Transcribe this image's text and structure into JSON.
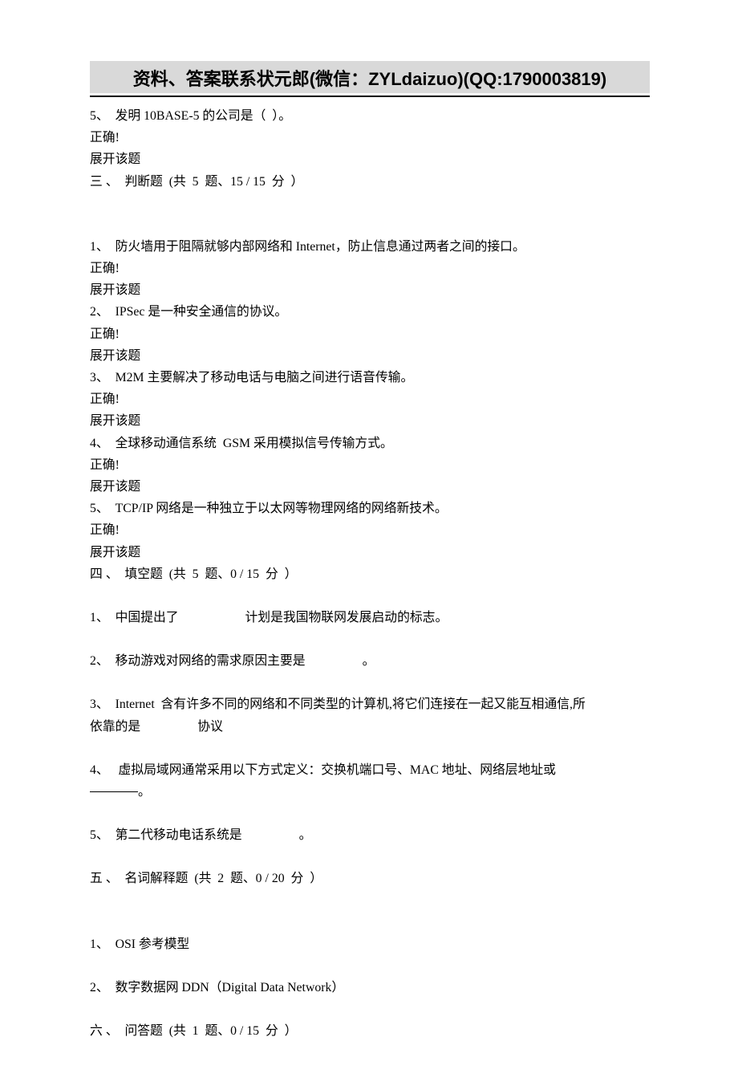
{
  "header": {
    "bannerText": "资料、答案联系状元郎(微信：ZYLdaizuo)(QQ:1790003819)",
    "bannerBg": "#d9d9d9",
    "bannerColor": "#000000"
  },
  "intro": {
    "q5": "5、  发明 10BASE-5 的公司是（  ）。",
    "correct": "正确!",
    "expand": "展开该题"
  },
  "section3": {
    "title": "三 、  判断题  (共  5  题、15 / 15  分  ）",
    "items": [
      {
        "q": "1、  防火墙用于阻隔就够内部网络和 Internet，防止信息通过两者之间的接口。",
        "correct": "正确!",
        "expand": "展开该题"
      },
      {
        "q": "2、  IPSec 是一种安全通信的协议。",
        "correct": "正确!",
        "expand": "展开该题"
      },
      {
        "q": "3、  M2M 主要解决了移动电话与电脑之间进行语音传输。",
        "correct": "正确!",
        "expand": "展开该题"
      },
      {
        "q": "4、  全球移动通信系统  GSM 采用模拟信号传输方式。",
        "correct": "正确!",
        "expand": "展开该题"
      },
      {
        "q": "5、  TCP/IP 网络是一种独立于以太网等物理网络的网络新技术。",
        "correct": "正确!",
        "expand": "展开该题"
      }
    ]
  },
  "section4": {
    "title": "四 、  填空题  (共  5  题、0 / 15  分  ）",
    "q1": "1、  中国提出了                     计划是我国物联网发展启动的标志。",
    "q2": "2、  移动游戏对网络的需求原因主要是                  。",
    "q3a": "3、  Internet  含有许多不同的网络和不同类型的计算机,将它们连接在一起又能互相通信,所",
    "q3b": "依靠的是                  协议",
    "q4a": "4、   虚拟局域网通常采用以下方式定义：交换机端口号、MAC 地址、网络层地址或",
    "q4b_suffix": "。",
    "q5": "5、  第二代移动电话系统是                  。"
  },
  "section5": {
    "title": "五 、  名词解释题  (共  2  题、0 / 20  分  ）",
    "q1": "1、  OSI 参考模型",
    "q2": "2、  数字数据网 DDN（Digital Data Network）"
  },
  "section6": {
    "title": "六 、  问答题  (共  1  题、0 / 15  分  ）"
  }
}
